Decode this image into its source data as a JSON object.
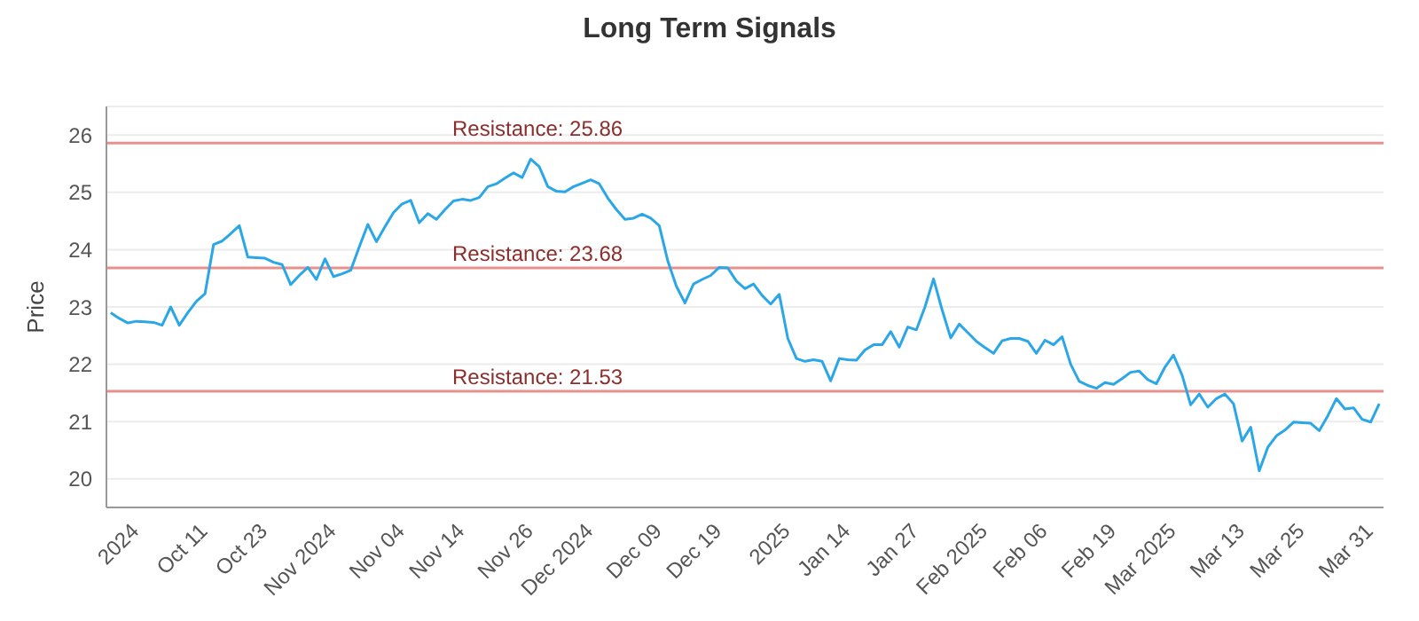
{
  "chart_data": {
    "type": "line",
    "title": "Long Term Signals",
    "ylabel": "Price",
    "categories": [
      null,
      null,
      null,
      "2024",
      null,
      null,
      null,
      null,
      null,
      null,
      null,
      "Oct 11",
      null,
      null,
      null,
      null,
      null,
      null,
      "Oct 23",
      null,
      null,
      null,
      null,
      null,
      null,
      null,
      "Nov 2024",
      null,
      null,
      null,
      null,
      null,
      null,
      null,
      "Nov 04",
      null,
      null,
      null,
      null,
      null,
      null,
      "Nov 14",
      null,
      null,
      null,
      null,
      null,
      null,
      null,
      "Nov 26",
      null,
      null,
      null,
      null,
      null,
      null,
      "Dec 2024",
      null,
      null,
      null,
      null,
      null,
      null,
      null,
      "Dec 09",
      null,
      null,
      null,
      null,
      null,
      null,
      "Dec 19",
      null,
      null,
      null,
      null,
      null,
      null,
      null,
      "2025",
      null,
      null,
      null,
      null,
      null,
      null,
      "Jan 14",
      null,
      null,
      null,
      null,
      null,
      null,
      null,
      "Jan 27",
      null,
      null,
      null,
      null,
      null,
      null,
      null,
      "Feb 2025",
      null,
      null,
      null,
      null,
      null,
      null,
      "Feb 06",
      null,
      null,
      null,
      null,
      null,
      null,
      null,
      "Feb 19",
      null,
      null,
      null,
      null,
      null,
      null,
      "Mar 2025",
      null,
      null,
      null,
      null,
      null,
      null,
      null,
      "Mar 13",
      null,
      null,
      null,
      null,
      null,
      null,
      "Mar 25",
      null,
      null,
      null,
      null,
      null,
      null,
      null,
      "Mar 31",
      null
    ],
    "series": [
      {
        "color": "#2ba6e6",
        "values": [
          22.9,
          22.8,
          22.72,
          22.75,
          22.74,
          22.73,
          22.68,
          23.0,
          22.68,
          22.9,
          23.1,
          23.23,
          24.09,
          24.15,
          24.28,
          24.42,
          23.87,
          23.86,
          23.85,
          23.78,
          23.74,
          23.39,
          23.55,
          23.69,
          23.48,
          23.84,
          23.53,
          23.58,
          23.64,
          24.05,
          24.44,
          24.14,
          24.4,
          24.65,
          24.8,
          24.86,
          24.47,
          24.63,
          24.53,
          24.7,
          24.85,
          24.88,
          24.86,
          24.91,
          25.1,
          25.15,
          25.25,
          25.34,
          25.26,
          25.58,
          25.45,
          25.1,
          25.02,
          25.01,
          25.1,
          25.16,
          25.22,
          25.15,
          24.9,
          24.7,
          24.53,
          24.55,
          24.62,
          24.55,
          24.42,
          23.8,
          23.36,
          23.07,
          23.4,
          23.48,
          23.55,
          23.69,
          23.68,
          23.45,
          23.32,
          23.4,
          23.2,
          23.05,
          23.22,
          22.45,
          22.1,
          22.05,
          22.08,
          22.05,
          21.71,
          22.1,
          22.08,
          22.07,
          22.25,
          22.34,
          22.34,
          22.57,
          22.3,
          22.65,
          22.6,
          23.0,
          23.49,
          22.95,
          22.46,
          22.7,
          22.55,
          22.4,
          22.29,
          22.19,
          22.41,
          22.45,
          22.45,
          22.4,
          22.19,
          22.42,
          22.34,
          22.48,
          22.0,
          21.7,
          21.63,
          21.58,
          21.68,
          21.65,
          21.75,
          21.86,
          21.88,
          21.73,
          21.66,
          21.95,
          22.16,
          21.81,
          21.29,
          21.48,
          21.25,
          21.4,
          21.48,
          21.31,
          20.66,
          20.9,
          20.14,
          20.55,
          20.75,
          20.85,
          20.99,
          20.98,
          20.97,
          20.84,
          21.1,
          21.4,
          21.22,
          21.24,
          21.04,
          20.99,
          21.31
        ]
      }
    ],
    "ylim": [
      19.5,
      26.5
    ],
    "yticks": [
      20,
      21,
      22,
      23,
      24,
      25,
      26
    ],
    "grid": "y",
    "marker": "none",
    "line_style": "solid",
    "legend": false,
    "ref_lines": [
      {
        "axis": "y",
        "value": 25.86,
        "label": "Resistance: 25.86",
        "color": "#e8908c"
      },
      {
        "axis": "y",
        "value": 23.68,
        "label": "Resistance: 23.68",
        "color": "#e8908c"
      },
      {
        "axis": "y",
        "value": 21.53,
        "label": "Resistance: 21.53",
        "color": "#e8908c"
      }
    ]
  }
}
